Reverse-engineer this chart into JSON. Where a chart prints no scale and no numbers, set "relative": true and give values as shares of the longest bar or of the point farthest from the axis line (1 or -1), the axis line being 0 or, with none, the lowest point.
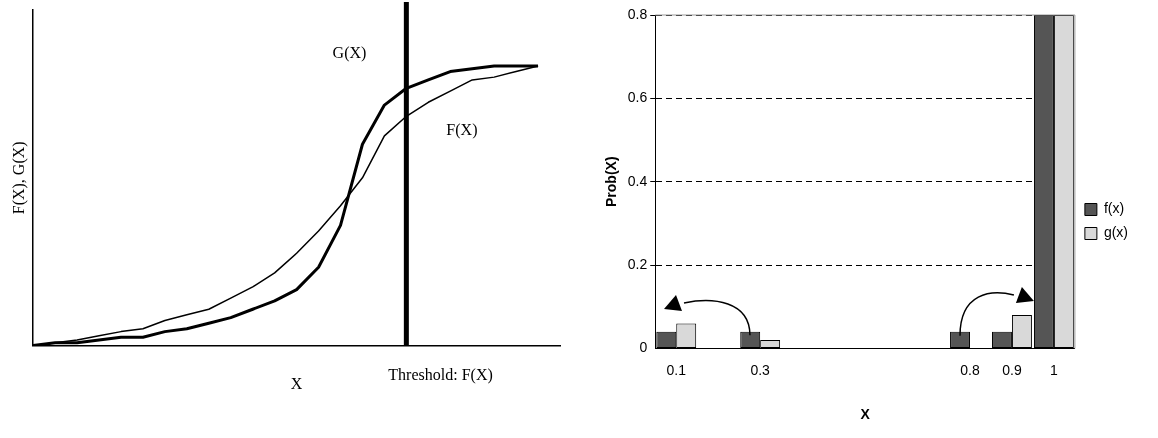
{
  "chart_data": [
    {
      "type": "line",
      "relative": true,
      "xlabel": "X",
      "ylabel": "F(X), G(X)",
      "grid": false,
      "legend": false,
      "marker": "none",
      "categories": [
        null,
        null,
        null,
        null,
        null,
        null,
        null,
        null,
        null,
        null,
        null,
        null,
        null,
        null,
        null,
        null,
        null,
        null,
        null,
        null,
        null,
        null,
        null,
        null,
        null
      ],
      "annotations": [
        "Threshold: F(X)"
      ],
      "series": [
        {
          "name": "F(X)",
          "color": "#000000",
          "values": [
            0,
            0.01,
            0.02,
            0.035,
            0.05,
            0.06,
            0.09,
            0.11,
            0.13,
            0.17,
            0.21,
            0.26,
            0.33,
            0.41,
            0.5,
            0.6,
            0.75,
            0.82,
            0.87,
            0.91,
            0.95,
            0.96,
            0.98,
            1,
            null
          ]
        },
        {
          "name": "G(X)",
          "color": "#000000",
          "values": [
            0,
            0.01,
            0.01,
            0.02,
            0.03,
            0.03,
            0.05,
            0.06,
            0.08,
            0.1,
            0.13,
            0.16,
            0.2,
            0.28,
            0.43,
            0.72,
            0.86,
            0.92,
            0.95,
            0.98,
            0.99,
            1,
            1,
            1,
            null
          ]
        }
      ]
    },
    {
      "type": "bar",
      "xlabel": "X",
      "ylabel": "Prob(X)",
      "ylim": [
        0,
        0.8
      ],
      "yticks": [
        0,
        0.2,
        0.4,
        0.6,
        0.8
      ],
      "grid": "y",
      "legend": "right",
      "categories": [
        "0.1",
        null,
        "0.3",
        null,
        null,
        null,
        null,
        "0.8",
        "0.9",
        "1"
      ],
      "series": [
        {
          "name": "f(x)",
          "color": "#555555",
          "values": [
            0.04,
            null,
            0.04,
            null,
            null,
            null,
            null,
            0.04,
            0.04,
            0.8
          ]
        },
        {
          "name": "g(x)",
          "color": "#d9d9d9",
          "values": [
            0.06,
            null,
            0.02,
            null,
            null,
            null,
            null,
            null,
            0.08,
            0.8
          ]
        }
      ]
    }
  ]
}
